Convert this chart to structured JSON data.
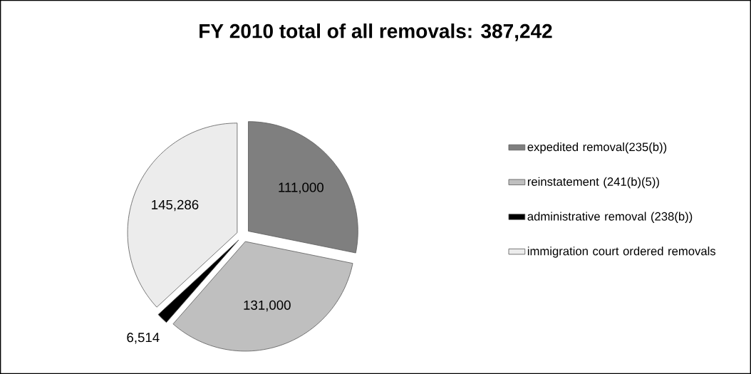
{
  "chart_data": {
    "type": "pie",
    "title": "FY 2010 total of all removals:  387,242",
    "categories": [
      "expedited removal(235(b))",
      "reinstatement (241(b)(5))",
      "administrative removal (238(b))",
      "immigration court ordered removals"
    ],
    "values": [
      111000,
      131000,
      6514,
      145286
    ],
    "colors": [
      "#7f7f7f",
      "#bfbfbf",
      "#000000",
      "#ececec"
    ],
    "value_labels": [
      "111,000",
      "131,000",
      "6,514",
      "145,286"
    ],
    "legend": "right"
  }
}
